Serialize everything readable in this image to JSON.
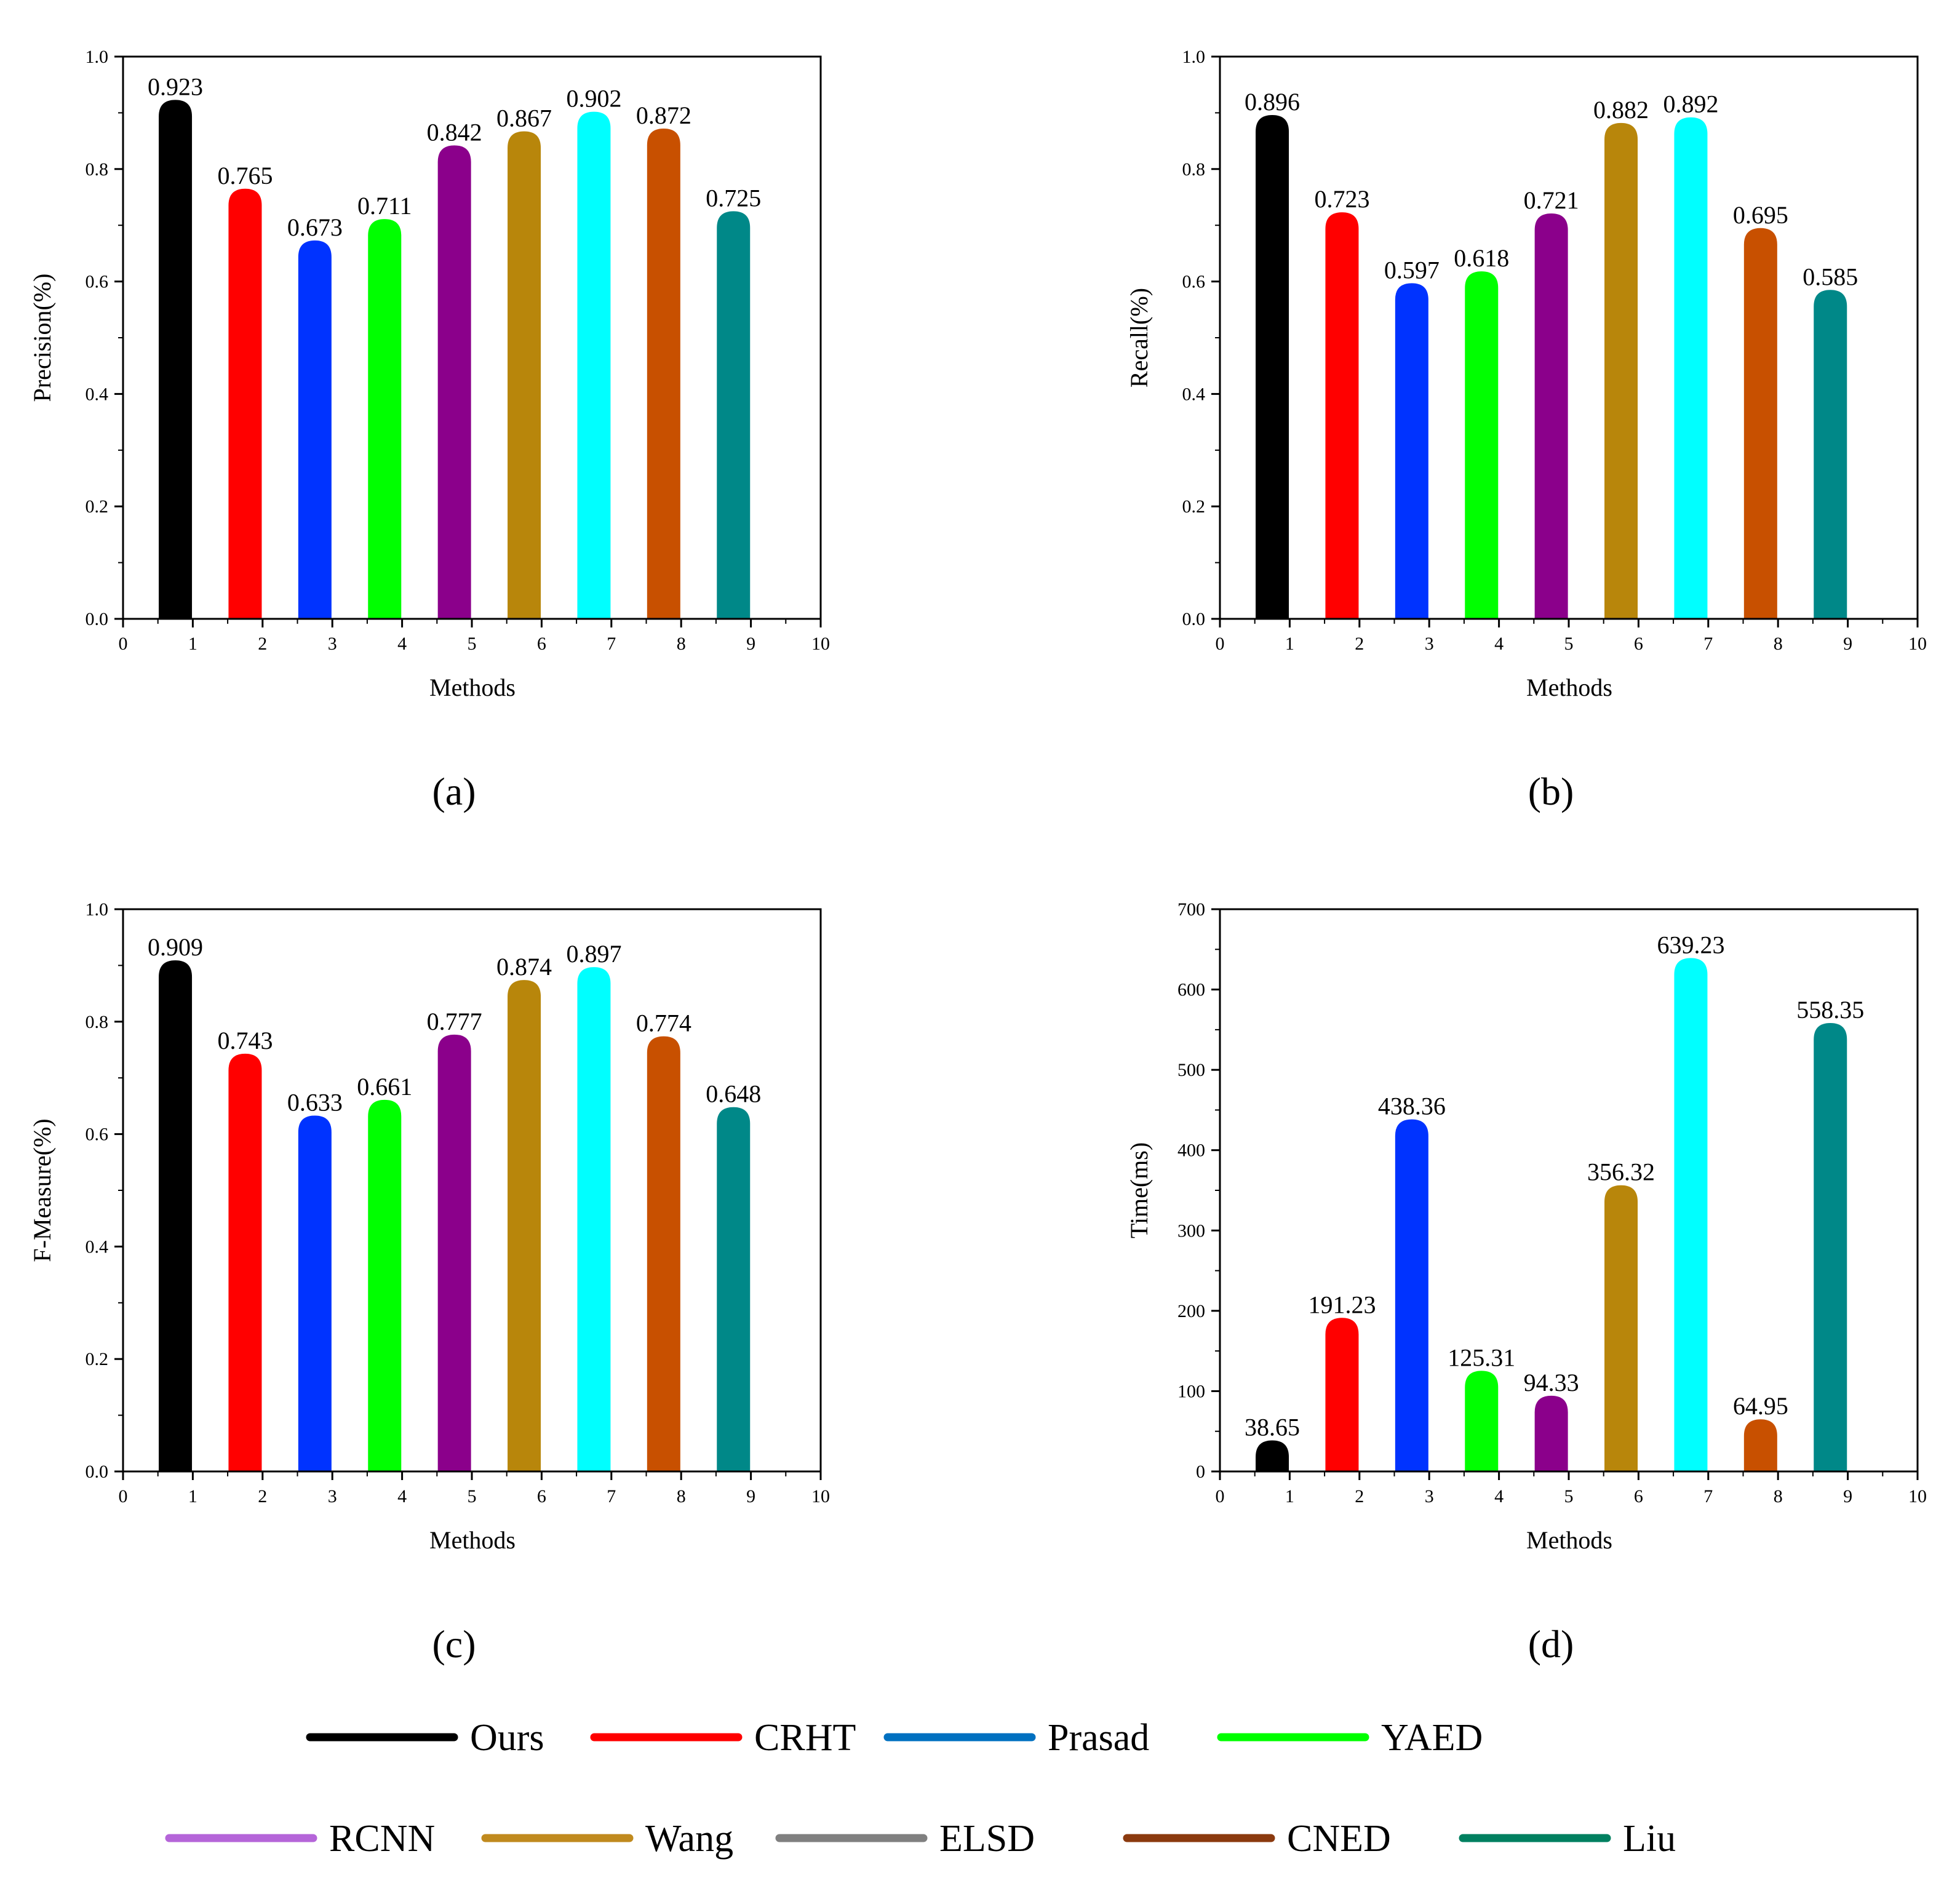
{
  "chart_data": [
    {
      "type": "bar",
      "panel_label": "(a)",
      "xlabel": "Methods",
      "ylabel": "Precision(%)",
      "x": [
        1,
        2,
        3,
        4,
        5,
        6,
        7,
        8,
        9
      ],
      "values": [
        0.923,
        0.765,
        0.673,
        0.711,
        0.842,
        0.867,
        0.902,
        0.872,
        0.725
      ],
      "data_labels": [
        "0.923",
        "0.765",
        "0.673",
        "0.711",
        "0.842",
        "0.867",
        "0.902",
        "0.872",
        "0.725"
      ],
      "xlim": [
        0,
        10
      ],
      "ylim": [
        0,
        1.0
      ],
      "xticks": [
        "0",
        "1",
        "2",
        "3",
        "4",
        "5",
        "6",
        "7",
        "8",
        "9",
        "10"
      ],
      "yticks": [
        "0.0",
        "0.2",
        "0.4",
        "0.6",
        "0.8",
        "1.0"
      ]
    },
    {
      "type": "bar",
      "panel_label": "(b)",
      "xlabel": "Methods",
      "ylabel": "Recall(%)",
      "x": [
        1,
        2,
        3,
        4,
        5,
        6,
        7,
        8,
        9
      ],
      "values": [
        0.896,
        0.723,
        0.597,
        0.618,
        0.721,
        0.882,
        0.892,
        0.695,
        0.585
      ],
      "data_labels": [
        "0.896",
        "0.723",
        "0.597",
        "0.618",
        "0.721",
        "0.882",
        "0.892",
        "0.695",
        "0.585"
      ],
      "xlim": [
        0,
        10
      ],
      "ylim": [
        0,
        1.0
      ],
      "xticks": [
        "0",
        "1",
        "2",
        "3",
        "4",
        "5",
        "6",
        "7",
        "8",
        "9",
        "10"
      ],
      "yticks": [
        "0.0",
        "0.2",
        "0.4",
        "0.6",
        "0.8",
        "1.0"
      ]
    },
    {
      "type": "bar",
      "panel_label": "(c)",
      "xlabel": "Methods",
      "ylabel": "F-Measure(%)",
      "x": [
        1,
        2,
        3,
        4,
        5,
        6,
        7,
        8,
        9
      ],
      "values": [
        0.909,
        0.743,
        0.633,
        0.661,
        0.777,
        0.874,
        0.897,
        0.774,
        0.648
      ],
      "data_labels": [
        "0.909",
        "0.743",
        "0.633",
        "0.661",
        "0.777",
        "0.874",
        "0.897",
        "0.774",
        "0.648"
      ],
      "xlim": [
        0,
        10
      ],
      "ylim": [
        0,
        1.0
      ],
      "xticks": [
        "0",
        "1",
        "2",
        "3",
        "4",
        "5",
        "6",
        "7",
        "8",
        "9",
        "10"
      ],
      "yticks": [
        "0.0",
        "0.2",
        "0.4",
        "0.6",
        "0.8",
        "1.0"
      ]
    },
    {
      "type": "bar",
      "panel_label": "(d)",
      "xlabel": "Methods",
      "ylabel": "Time(ms)",
      "x": [
        1,
        2,
        3,
        4,
        5,
        6,
        7,
        8,
        9
      ],
      "values": [
        38.65,
        191.23,
        438.36,
        125.31,
        94.33,
        356.32,
        639.23,
        64.95,
        558.35
      ],
      "data_labels": [
        "38.65",
        "191.23",
        "438.36",
        "125.31",
        "94.33",
        "356.32",
        "639.23",
        "64.95",
        "558.35"
      ],
      "xlim": [
        0,
        10
      ],
      "ylim": [
        0,
        700
      ],
      "xticks": [
        "0",
        "1",
        "2",
        "3",
        "4",
        "5",
        "6",
        "7",
        "8",
        "9",
        "10"
      ],
      "yticks": [
        "0",
        "100",
        "200",
        "300",
        "400",
        "500",
        "600",
        "700"
      ]
    }
  ],
  "bar_colors": [
    "#000000",
    "#ff0000",
    "#0033ff",
    "#00ff00",
    "#8b008b",
    "#b8860b",
    "#00ffff",
    "#c85000",
    "#008888"
  ],
  "legend": {
    "items": [
      {
        "label": "Ours",
        "color": "#000000"
      },
      {
        "label": "CRHT",
        "color": "#ff0000"
      },
      {
        "label": "Prasad",
        "color": "#0070c0"
      },
      {
        "label": "YAED",
        "color": "#00ff00"
      },
      {
        "label": "RCNN",
        "color": "#b565d9"
      },
      {
        "label": "Wang",
        "color": "#c08a1e"
      },
      {
        "label": "ELSD",
        "color": "#808080"
      },
      {
        "label": "CNED",
        "color": "#8b3a0f"
      },
      {
        "label": "Liu",
        "color": "#008060"
      }
    ]
  }
}
